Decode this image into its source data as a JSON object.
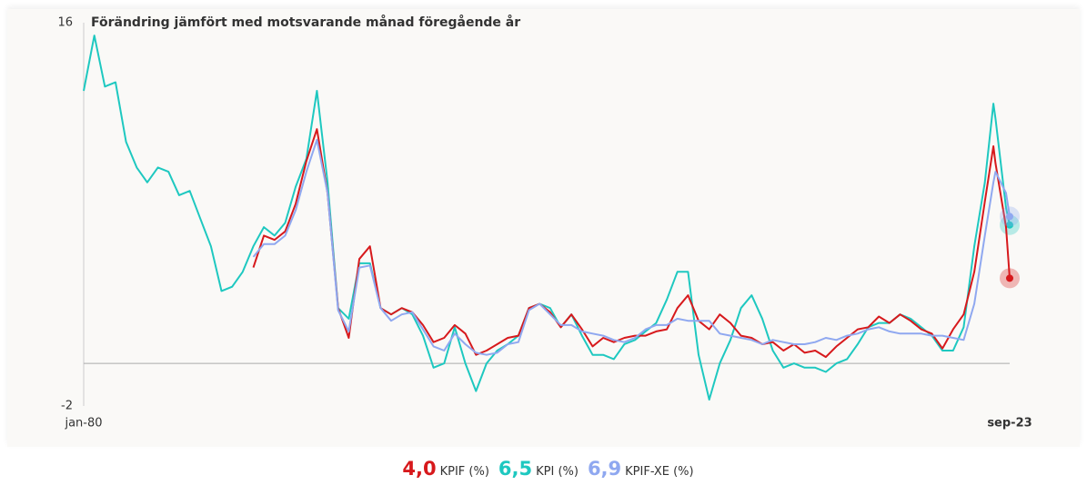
{
  "chart_data": {
    "type": "line",
    "title": "Förändring jämfört med motsvarande månad föregående år",
    "x": [
      1980,
      1980.5,
      1981,
      1981.5,
      1982,
      1982.5,
      1983,
      1983.5,
      1984,
      1984.5,
      1985,
      1985.5,
      1986,
      1986.5,
      1987,
      1987.5,
      1988,
      1988.5,
      1989,
      1989.5,
      1990,
      1990.5,
      1991,
      1991.5,
      1992,
      1992.5,
      1993,
      1993.5,
      1994,
      1994.5,
      1995,
      1995.5,
      1996,
      1996.5,
      1997,
      1997.5,
      1998,
      1998.5,
      1999,
      1999.5,
      2000,
      2000.5,
      2001,
      2001.5,
      2002,
      2002.5,
      2003,
      2003.5,
      2004,
      2004.5,
      2005,
      2005.5,
      2006,
      2006.5,
      2007,
      2007.5,
      2008,
      2008.5,
      2009,
      2009.5,
      2010,
      2010.5,
      2011,
      2011.5,
      2012,
      2012.5,
      2013,
      2013.5,
      2014,
      2014.5,
      2015,
      2015.5,
      2016,
      2016.5,
      2017,
      2017.5,
      2018,
      2018.5,
      2019,
      2019.5,
      2020,
      2020.5,
      2021,
      2021.5,
      2022,
      2022.5,
      2022.9,
      2023,
      2023.5,
      2023.67
    ],
    "series": [
      {
        "name": "KPIF (%)",
        "color": "#d7191c",
        "latest_label": "4,0",
        "values": [
          null,
          null,
          null,
          null,
          null,
          null,
          null,
          null,
          null,
          null,
          null,
          null,
          null,
          null,
          null,
          null,
          4.5,
          6.0,
          5.8,
          6.2,
          7.5,
          9.5,
          11.0,
          8.0,
          2.6,
          1.2,
          4.9,
          5.5,
          2.6,
          2.3,
          2.6,
          2.4,
          1.8,
          1.0,
          1.2,
          1.8,
          1.4,
          0.4,
          0.6,
          0.9,
          1.2,
          1.3,
          2.6,
          2.8,
          2.4,
          1.7,
          2.3,
          1.6,
          0.8,
          1.2,
          1.0,
          1.2,
          1.3,
          1.3,
          1.5,
          1.6,
          2.6,
          3.2,
          2.0,
          1.6,
          2.3,
          1.9,
          1.3,
          1.2,
          0.9,
          1.0,
          0.6,
          0.9,
          0.5,
          0.6,
          0.3,
          0.8,
          1.2,
          1.6,
          1.7,
          2.2,
          1.9,
          2.3,
          2.0,
          1.6,
          1.4,
          0.7,
          1.6,
          2.3,
          4.3,
          7.6,
          10.2,
          9.4,
          6.4,
          4.0
        ]
      },
      {
        "name": "KPI (%)",
        "color": "#1ec8c0",
        "latest_label": "6,5",
        "values": [
          12.8,
          15.4,
          13.0,
          13.2,
          10.4,
          9.2,
          8.5,
          9.2,
          9.0,
          7.9,
          8.1,
          6.8,
          5.5,
          3.4,
          3.6,
          4.3,
          5.5,
          6.4,
          6.0,
          6.6,
          8.3,
          9.6,
          12.8,
          8.5,
          2.6,
          2.1,
          4.7,
          4.7,
          2.6,
          2.3,
          2.6,
          2.3,
          1.3,
          -0.2,
          0,
          1.7,
          0,
          -1.3,
          0,
          0.6,
          0.9,
          1.3,
          2.6,
          2.8,
          2.6,
          1.7,
          2.3,
          1.3,
          0.4,
          0.4,
          0.2,
          0.9,
          1.1,
          1.5,
          1.9,
          3.0,
          4.3,
          4.3,
          0.4,
          -1.7,
          0,
          1.1,
          2.6,
          3.2,
          2.1,
          0.6,
          -0.2,
          0,
          -0.2,
          -0.2,
          -0.4,
          0,
          0.2,
          0.9,
          1.7,
          1.9,
          1.9,
          2.3,
          2.1,
          1.7,
          1.3,
          0.6,
          0.6,
          1.7,
          5.5,
          8.5,
          12.2,
          11.5,
          7.3,
          6.5
        ]
      },
      {
        "name": "KPIF-XE (%)",
        "color": "#8fa8f0",
        "latest_label": "6,9",
        "values": [
          null,
          null,
          null,
          null,
          null,
          null,
          null,
          null,
          null,
          null,
          null,
          null,
          null,
          null,
          null,
          null,
          5.0,
          5.6,
          5.6,
          6.0,
          7.2,
          9.0,
          10.5,
          8.0,
          2.5,
          1.5,
          4.5,
          4.6,
          2.6,
          2.0,
          2.3,
          2.4,
          1.6,
          0.8,
          0.6,
          1.4,
          0.9,
          0.5,
          0.4,
          0.5,
          0.9,
          1.0,
          2.5,
          2.8,
          2.3,
          1.8,
          1.8,
          1.5,
          1.4,
          1.3,
          1.1,
          1.0,
          1.2,
          1.6,
          1.8,
          1.8,
          2.1,
          2.0,
          2.0,
          2.0,
          1.4,
          1.3,
          1.2,
          1.1,
          0.9,
          1.1,
          1.0,
          0.9,
          0.9,
          1.0,
          1.2,
          1.1,
          1.3,
          1.4,
          1.6,
          1.7,
          1.5,
          1.4,
          1.4,
          1.4,
          1.3,
          1.3,
          1.2,
          1.1,
          2.8,
          6.0,
          8.5,
          9.0,
          8.0,
          6.9
        ]
      }
    ],
    "xlim": [
      1980,
      2023.67
    ],
    "xticks": [
      {
        "value": 1980,
        "label": "jan-80"
      },
      {
        "value": 2023.67,
        "label": "sep-23"
      }
    ],
    "ylim": [
      -2,
      16
    ],
    "yticks": [
      -2,
      16
    ],
    "grid": false
  }
}
